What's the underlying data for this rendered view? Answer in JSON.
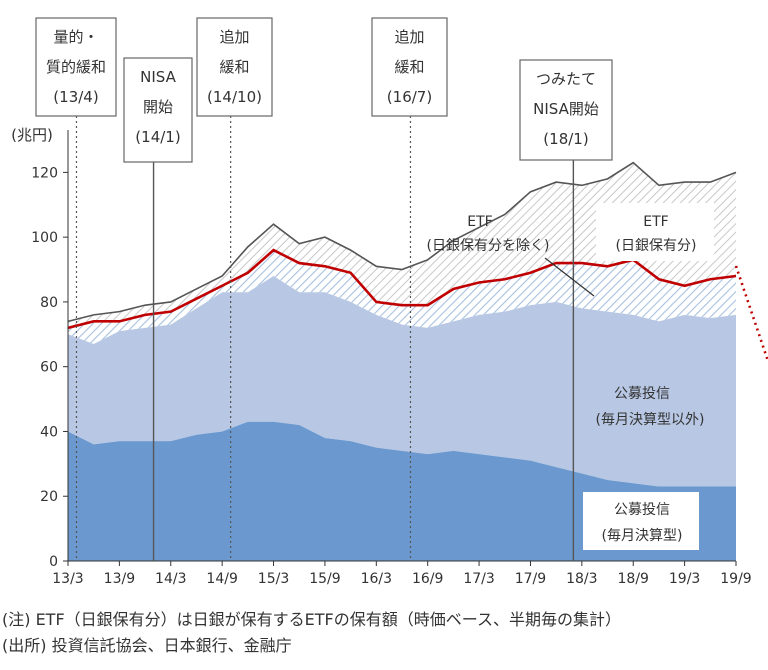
{
  "chart_data": {
    "type": "area",
    "unit_label": "(兆円)",
    "ylim": [
      0,
      130
    ],
    "y_ticks": [
      "0",
      "20",
      "40",
      "60",
      "80",
      "100",
      "120"
    ],
    "x_tick_labels": [
      "13/3",
      "13/9",
      "14/3",
      "14/9",
      "15/3",
      "15/9",
      "16/3",
      "16/9",
      "17/3",
      "17/9",
      "18/3",
      "18/9",
      "19/3",
      "19/9"
    ],
    "x": [
      "13/3",
      "13/6",
      "13/9",
      "13/12",
      "14/3",
      "14/6",
      "14/9",
      "14/12",
      "15/3",
      "15/6",
      "15/9",
      "15/12",
      "16/3",
      "16/6",
      "16/9",
      "16/12",
      "17/3",
      "17/6",
      "17/9",
      "17/12",
      "18/3",
      "18/6",
      "18/9",
      "18/12",
      "19/3",
      "19/6",
      "19/9"
    ],
    "series": [
      {
        "name": "公募投信（毎月決算型）",
        "values": [
          40,
          36,
          37,
          37,
          37,
          39,
          40,
          43,
          43,
          42,
          38,
          37,
          35,
          34,
          33,
          34,
          33,
          32,
          31,
          29,
          27,
          25,
          24,
          23,
          23,
          23,
          23
        ]
      },
      {
        "name": "公募投信（毎月決算型以外）",
        "values": [
          70,
          67,
          71,
          72,
          73,
          78,
          83,
          83,
          88,
          83,
          83,
          80,
          76,
          73,
          72,
          74,
          76,
          77,
          79,
          80,
          78,
          77,
          76,
          74,
          76,
          75,
          76
        ]
      },
      {
        "name": "ETF（日銀保有分を除く）",
        "values": [
          72,
          74,
          74,
          76,
          77,
          81,
          85,
          89,
          96,
          92,
          91,
          89,
          80,
          79,
          79,
          84,
          86,
          87,
          89,
          92,
          92,
          91,
          93,
          87,
          85,
          87,
          88
        ]
      },
      {
        "name": "ETF（日銀保有分）",
        "values": [
          74,
          76,
          77,
          79,
          80,
          84,
          88,
          97,
          104,
          98,
          100,
          96,
          91,
          90,
          93,
          99,
          103,
          107,
          114,
          117,
          116,
          118,
          123,
          116,
          117,
          117,
          120
        ]
      }
    ],
    "events": [
      {
        "label_lines": [
          "量的・",
          "質的緩和",
          "(13/4)"
        ],
        "x_index": 0.33
      },
      {
        "label_lines": [
          "NISA",
          "開始",
          "(14/1)"
        ],
        "x_index": 3.33
      },
      {
        "label_lines": [
          "追加",
          "緩和",
          "(14/10)"
        ],
        "x_index": 6.33
      },
      {
        "label_lines": [
          "追加",
          "緩和",
          "(16/7)"
        ],
        "x_index": 13.33
      },
      {
        "label_lines": [
          "つみたて",
          "NISA開始",
          "(18/1)"
        ],
        "x_index": 19.67
      }
    ],
    "labels": {
      "etf_ex_boj_1": "ETF",
      "etf_ex_boj_2": "(日銀保有分を除く)",
      "etf_boj_1": "ETF",
      "etf_boj_2": "(日銀保有分)",
      "other_1": "公募投信",
      "other_2": "(毎月決算型以外)",
      "monthly_1": "公募投信",
      "monthly_2": "(毎月決算型)"
    },
    "colors": {
      "monthly": "#6b99cf",
      "other": "#b8c8e4",
      "etf_hatch": "#a8c0e0",
      "boj_hatch": "#c8c8c8",
      "red_line": "#c00000",
      "total_line": "#555555"
    },
    "grid": false
  },
  "notes": {
    "line1": "(注) ETF（日銀保有分）は日銀が保有するETFの保有額（時価ベース、半期毎の集計）",
    "line2": "(出所) 投資信託協会、日本銀行、金融庁"
  }
}
